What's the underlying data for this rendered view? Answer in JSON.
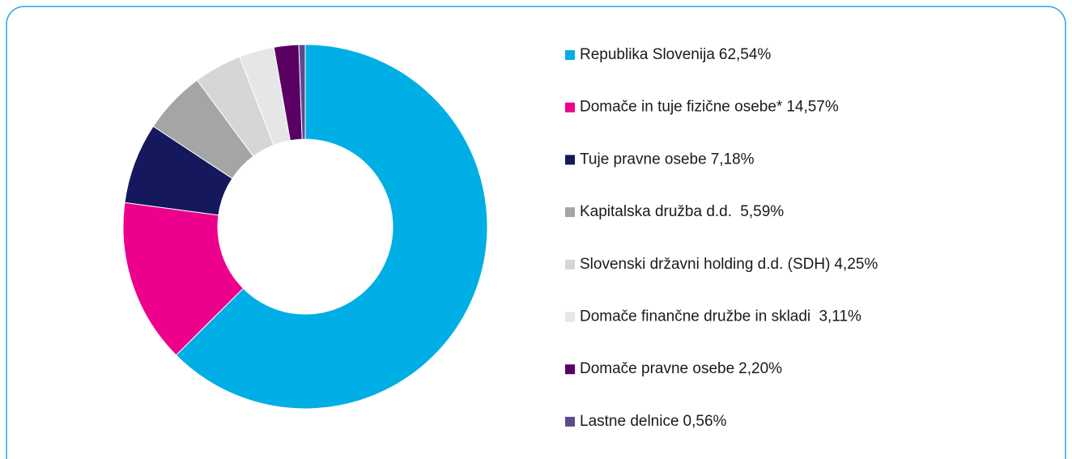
{
  "chart_data": {
    "type": "donut",
    "categories": [
      "Republika Slovenija",
      "Domače in tuje fizične osebe*",
      "Tuje pravne osebe",
      "Kapitalska družba d.d. ",
      "Slovenski državni holding d.d. (SDH)",
      "Domače finančne družbe in skladi ",
      "Domače pravne osebe",
      "Lastne delnice"
    ],
    "values": [
      62.54,
      14.57,
      7.18,
      5.59,
      4.25,
      3.11,
      2.2,
      0.56
    ],
    "value_labels": [
      "62,54%",
      "14,57%",
      "7,18%",
      "5,59%",
      "4,25%",
      "3,11%",
      "2,20%",
      "0,56%"
    ],
    "colors": [
      "#00aee6",
      "#ec008c",
      "#15185c",
      "#a5a5a5",
      "#d6d6d6",
      "#e6e6e6",
      "#5a0063",
      "#5b4b8a"
    ],
    "legend": "right"
  }
}
